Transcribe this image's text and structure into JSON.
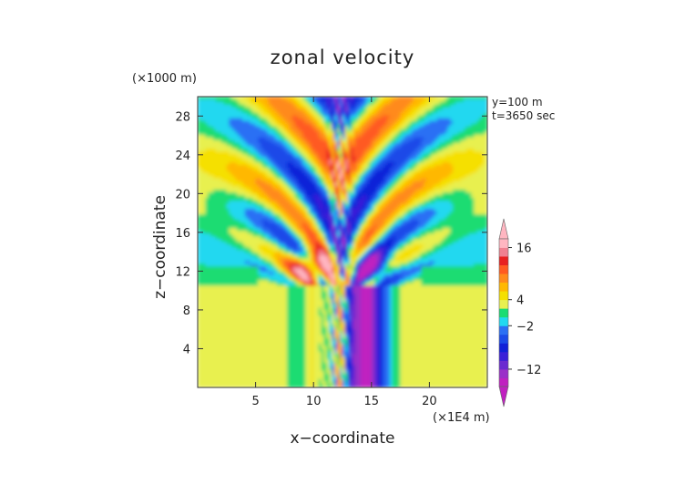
{
  "chart_data": {
    "type": "heatmap",
    "title": "zonal velocity",
    "xlabel": "x−coordinate",
    "ylabel": "z−coordinate",
    "x_unit": "(×1E4 m)",
    "y_unit": "(×1000 m)",
    "annotations": [
      "y=100 m",
      "t=3650 sec"
    ],
    "xlim": [
      0,
      25
    ],
    "ylim": [
      0,
      30
    ],
    "x_ticks": [
      5,
      10,
      15,
      20
    ],
    "x_tick_labels": [
      "5",
      "10",
      "15",
      "20"
    ],
    "y_ticks": [
      4,
      8,
      12,
      16,
      20,
      24,
      28
    ],
    "y_tick_labels": [
      "4",
      "8",
      "12",
      "16",
      "20",
      "24",
      "28"
    ],
    "colorbar": {
      "levels": [
        -16,
        -14,
        -12,
        -10,
        -8,
        -6,
        -4,
        -2,
        0,
        2,
        4,
        6,
        8,
        10,
        12,
        14,
        16
      ],
      "colors": [
        "#c020c0",
        "#9a2fc8",
        "#6a2ad0",
        "#3a1fd8",
        "#1020d8",
        "#1a4ae8",
        "#2a6ff4",
        "#20d8f0",
        "#1adc72",
        "#e8f050",
        "#f5e000",
        "#ffb800",
        "#ff8a1a",
        "#ff5a20",
        "#e82020",
        "#f08090",
        "#ffb6c1"
      ],
      "tick_labels": [
        "16",
        "4",
        "−2",
        "−12"
      ],
      "tick_values": [
        16,
        4,
        -2,
        -12
      ],
      "extend": "both"
    }
  }
}
